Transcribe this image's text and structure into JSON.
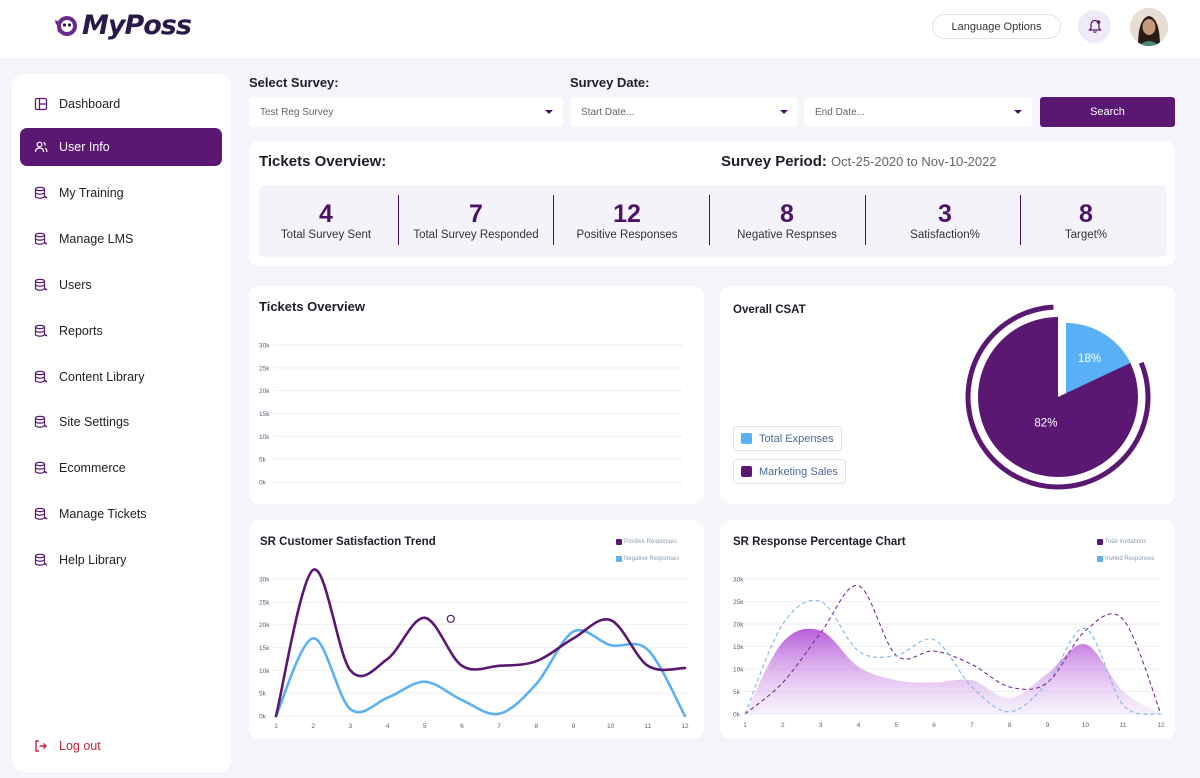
{
  "app": {
    "logo_text": "MyPoss",
    "language_button": "Language Options",
    "notification_icon": "bell-icon"
  },
  "sidebar": {
    "items": [
      {
        "label": "Dashboard",
        "icon": "dashboard-icon",
        "active": false
      },
      {
        "label": "User Info",
        "icon": "users-icon",
        "active": true
      },
      {
        "label": "My Training",
        "icon": "database-icon",
        "active": false
      },
      {
        "label": "Manage LMS",
        "icon": "database-icon",
        "active": false
      },
      {
        "label": "Users",
        "icon": "database-icon",
        "active": false
      },
      {
        "label": "Reports",
        "icon": "database-icon",
        "active": false
      },
      {
        "label": "Content Library",
        "icon": "database-icon",
        "active": false
      },
      {
        "label": "Site Settings",
        "icon": "database-icon",
        "active": false
      },
      {
        "label": "Ecommerce",
        "icon": "database-icon",
        "active": false
      },
      {
        "label": "Manage Tickets",
        "icon": "database-icon",
        "active": false
      },
      {
        "label": "Help Library",
        "icon": "database-icon",
        "active": false
      }
    ],
    "logout": "Log out"
  },
  "filters": {
    "survey_label": "Select Survey:",
    "survey_value": "Test Reg Survey",
    "date_label": "Survey Date:",
    "start_placeholder": "Start Date...",
    "end_placeholder": "End Date...",
    "search_button": "Search"
  },
  "overview": {
    "title": "Tickets Overview:",
    "period_label": "Survey Period:",
    "period_value": "Oct-25-2020 to Nov-10-2022",
    "stats": [
      {
        "value": "4",
        "label": "Total Survey Sent"
      },
      {
        "value": "7",
        "label": "Total Survey Responded"
      },
      {
        "value": "12",
        "label": "Positive Responses"
      },
      {
        "value": "8",
        "label": "Negative Respnses"
      },
      {
        "value": "3",
        "label": "Satisfaction%"
      },
      {
        "value": "8",
        "label": "Target%"
      }
    ]
  },
  "colors": {
    "primary": "#5a1872",
    "blue": "#5ab0f5",
    "background": "#f4f4fa"
  },
  "chart_data": [
    {
      "type": "line",
      "title": "Tickets Overview",
      "y_ticks": [
        "30k",
        "25k",
        "20k",
        "15k",
        "10k",
        "5k",
        "0k"
      ],
      "series": [],
      "ylim": [
        0,
        30000
      ],
      "grid": true
    },
    {
      "type": "pie",
      "title": "Overall CSAT",
      "slices": [
        {
          "name": "Total Expenses",
          "value": 18,
          "label": "18%",
          "color": "#5ab0f5"
        },
        {
          "name": "Marketing Sales",
          "value": 82,
          "label": "82%",
          "color": "#5a1872"
        }
      ],
      "legend": "left"
    },
    {
      "type": "line",
      "title": "SR Customer Satisfaction Trend",
      "x_ticks": [
        "1",
        "2",
        "3",
        "4",
        "5",
        "6",
        "7",
        "8",
        "9",
        "10",
        "11",
        "12"
      ],
      "y_ticks": [
        "30k",
        "25k",
        "20k",
        "15k",
        "10k",
        "5k",
        "0k"
      ],
      "ylim": [
        0,
        30000
      ],
      "series": [
        {
          "name": "Positive Responses",
          "color": "#5a1872",
          "x": [
            1,
            2,
            3,
            4,
            5,
            6,
            7,
            8,
            9,
            10,
            11,
            12
          ],
          "y": [
            0,
            32000,
            10000,
            12500,
            21500,
            11000,
            11000,
            12000,
            17000,
            21000,
            11000,
            10500
          ]
        },
        {
          "name": "Negative Responses",
          "color": "#5ab0f5",
          "x": [
            1,
            2,
            3,
            4,
            5,
            6,
            7,
            8,
            9,
            10,
            11,
            12
          ],
          "y": [
            0,
            17000,
            1500,
            4000,
            7500,
            3500,
            500,
            7000,
            18500,
            15500,
            14500,
            0
          ]
        }
      ],
      "legend": "top-right",
      "grid": true
    },
    {
      "type": "area",
      "title": "SR Response Percentage Chart",
      "x_ticks": [
        "1",
        "2",
        "3",
        "4",
        "5",
        "6",
        "7",
        "8",
        "9",
        "10",
        "11",
        "12"
      ],
      "y_ticks": [
        "30k",
        "25k",
        "20k",
        "15k",
        "10k",
        "5k",
        "0k"
      ],
      "ylim": [
        0,
        30000
      ],
      "area_series": {
        "color": "#b04ad8",
        "x": [
          1,
          2,
          3,
          4,
          5,
          6,
          7,
          8,
          9,
          10,
          11,
          12
        ],
        "y": [
          0,
          16000,
          18500,
          10500,
          7500,
          7000,
          7500,
          3500,
          9000,
          15500,
          5000,
          0
        ]
      },
      "series": [
        {
          "name": "Total Invitations",
          "color": "#7a2a92",
          "dashed": true,
          "x": [
            1,
            2,
            3,
            4,
            5,
            6,
            7,
            8,
            9,
            10,
            11,
            12
          ],
          "y": [
            0,
            7000,
            18000,
            28500,
            13000,
            14000,
            11000,
            6000,
            7000,
            18500,
            21000,
            0
          ]
        },
        {
          "name": "Invited Responses",
          "color": "#7ab8e8",
          "dashed": true,
          "x": [
            1,
            2,
            3,
            4,
            5,
            6,
            7,
            8,
            9,
            10,
            11,
            12
          ],
          "y": [
            0,
            20000,
            25000,
            14000,
            13000,
            16500,
            6000,
            500,
            7000,
            19000,
            2000,
            0
          ]
        }
      ],
      "legend": "top-right",
      "grid": true
    }
  ]
}
